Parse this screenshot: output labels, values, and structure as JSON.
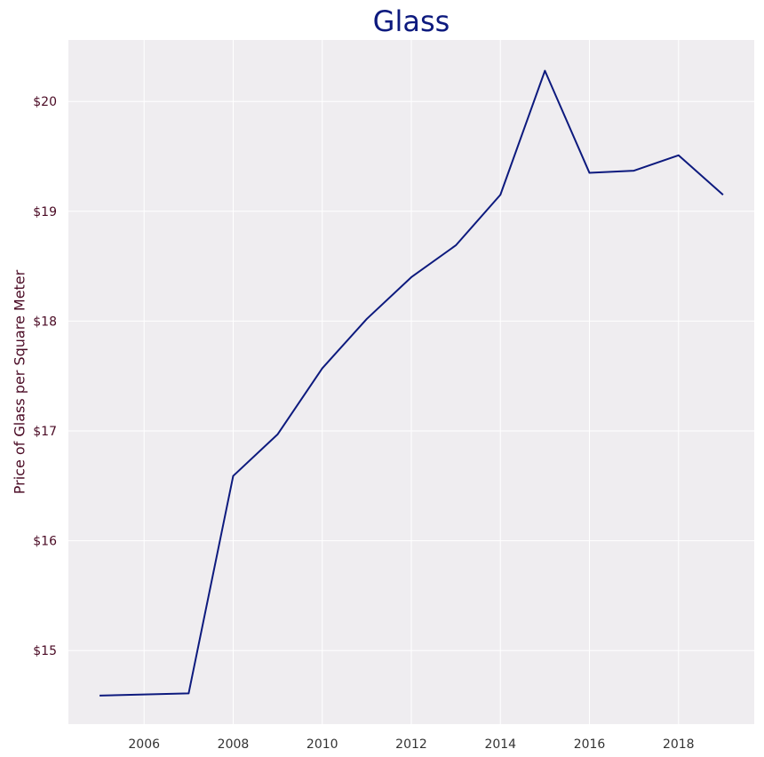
{
  "chart_data": {
    "type": "line",
    "title": "Glass",
    "xlabel": "",
    "ylabel": "Price of Glass per Square Meter",
    "x": [
      2005,
      2006,
      2007,
      2008,
      2009,
      2010,
      2011,
      2012,
      2013,
      2014,
      2015,
      2016,
      2017,
      2018,
      2019
    ],
    "series": [
      {
        "values": [
          14.59,
          14.6,
          14.61,
          16.59,
          16.97,
          17.57,
          18.02,
          18.4,
          18.69,
          19.15,
          20.28,
          19.35,
          19.37,
          19.51,
          19.15
        ]
      }
    ],
    "xlim": [
      2004.3,
      2019.7
    ],
    "ylim": [
      14.33,
      20.56
    ],
    "xticks": [
      2006,
      2008,
      2010,
      2012,
      2014,
      2016,
      2018
    ],
    "xtick_labels": [
      "2006",
      "2008",
      "2010",
      "2012",
      "2014",
      "2016",
      "2018"
    ],
    "yticks": [
      15,
      16,
      17,
      18,
      19,
      20
    ],
    "ytick_labels": [
      "$15",
      "$16",
      "$17",
      "$18",
      "$19",
      "$20"
    ],
    "grid": true,
    "colors": {
      "line": "#0d1a7e",
      "title": "#0d1a7e",
      "plot_background": "#efedf0",
      "grid": "#ffffff",
      "ytick_text": "#4a0a24",
      "xtick_text": "#333333",
      "ylabel_text": "#4a0a24"
    }
  }
}
